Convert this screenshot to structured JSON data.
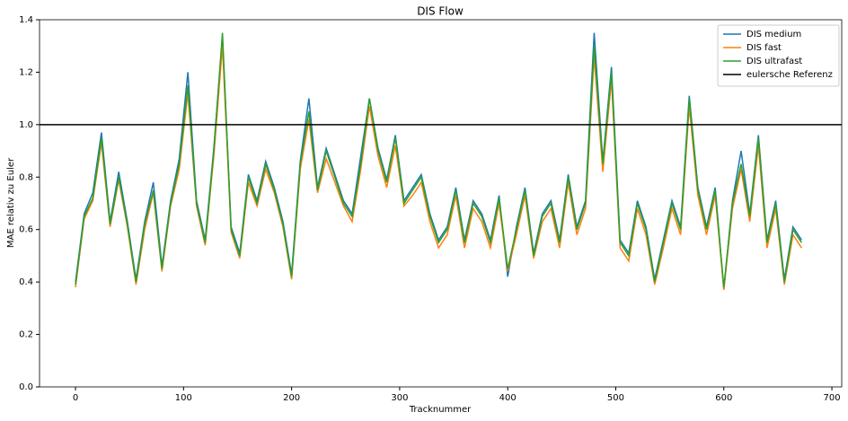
{
  "chart_data": {
    "type": "line",
    "title": "DIS Flow",
    "x_label": "Tracknummer",
    "y_label": "MAE relativ zu Euler",
    "x": [
      0,
      8,
      16,
      24,
      32,
      40,
      48,
      56,
      64,
      72,
      80,
      88,
      96,
      104,
      112,
      120,
      128,
      136,
      144,
      152,
      160,
      168,
      176,
      184,
      192,
      200,
      208,
      216,
      224,
      232,
      240,
      248,
      256,
      264,
      272,
      280,
      288,
      296,
      304,
      312,
      320,
      328,
      336,
      344,
      352,
      360,
      368,
      376,
      384,
      392,
      400,
      408,
      416,
      424,
      432,
      440,
      448,
      456,
      464,
      472,
      480,
      488,
      496,
      504,
      512,
      520,
      528,
      536,
      544,
      552,
      560,
      568,
      576,
      584,
      592,
      600,
      608,
      616,
      624,
      632,
      640,
      648,
      656,
      664,
      672
    ],
    "series": [
      {
        "name": "DIS medium",
        "color": "#1f77b4",
        "values": [
          0.4,
          0.66,
          0.74,
          0.97,
          0.63,
          0.82,
          0.63,
          0.41,
          0.63,
          0.78,
          0.46,
          0.71,
          0.87,
          1.2,
          0.71,
          0.56,
          0.91,
          1.33,
          0.61,
          0.51,
          0.81,
          0.71,
          0.86,
          0.76,
          0.63,
          0.43,
          0.86,
          1.1,
          0.76,
          0.91,
          0.81,
          0.71,
          0.66,
          0.88,
          1.1,
          0.91,
          0.79,
          0.96,
          0.71,
          0.76,
          0.81,
          0.66,
          0.56,
          0.61,
          0.76,
          0.56,
          0.71,
          0.66,
          0.56,
          0.73,
          0.42,
          0.61,
          0.76,
          0.51,
          0.66,
          0.71,
          0.56,
          0.81,
          0.61,
          0.71,
          1.35,
          0.86,
          1.22,
          0.56,
          0.51,
          0.71,
          0.61,
          0.41,
          0.56,
          0.71,
          0.61,
          1.11,
          0.76,
          0.61,
          0.76,
          0.37,
          0.71,
          0.9,
          0.66,
          0.96,
          0.56,
          0.71,
          0.41,
          0.61,
          0.56
        ]
      },
      {
        "name": "DIS fast",
        "color": "#ff7f0e",
        "values": [
          0.38,
          0.64,
          0.71,
          0.93,
          0.61,
          0.79,
          0.61,
          0.39,
          0.6,
          0.74,
          0.44,
          0.69,
          0.83,
          1.12,
          0.69,
          0.54,
          0.88,
          1.3,
          0.59,
          0.49,
          0.78,
          0.69,
          0.83,
          0.74,
          0.61,
          0.41,
          0.83,
          1.02,
          0.74,
          0.87,
          0.78,
          0.69,
          0.63,
          0.83,
          1.07,
          0.88,
          0.76,
          0.92,
          0.69,
          0.73,
          0.78,
          0.63,
          0.53,
          0.58,
          0.73,
          0.53,
          0.68,
          0.63,
          0.53,
          0.7,
          0.44,
          0.58,
          0.73,
          0.49,
          0.63,
          0.68,
          0.53,
          0.78,
          0.58,
          0.68,
          1.26,
          0.82,
          1.17,
          0.53,
          0.48,
          0.68,
          0.58,
          0.39,
          0.53,
          0.68,
          0.58,
          1.07,
          0.73,
          0.58,
          0.73,
          0.37,
          0.68,
          0.83,
          0.63,
          0.92,
          0.53,
          0.68,
          0.39,
          0.58,
          0.53
        ]
      },
      {
        "name": "DIS ultrafast",
        "color": "#2ca02c",
        "values": [
          0.39,
          0.65,
          0.72,
          0.95,
          0.62,
          0.8,
          0.62,
          0.4,
          0.62,
          0.75,
          0.45,
          0.7,
          0.85,
          1.15,
          0.7,
          0.55,
          0.9,
          1.35,
          0.6,
          0.5,
          0.8,
          0.7,
          0.85,
          0.75,
          0.62,
          0.42,
          0.85,
          1.05,
          0.75,
          0.9,
          0.8,
          0.7,
          0.65,
          0.85,
          1.1,
          0.9,
          0.78,
          0.95,
          0.7,
          0.75,
          0.8,
          0.65,
          0.55,
          0.6,
          0.75,
          0.55,
          0.7,
          0.65,
          0.55,
          0.72,
          0.45,
          0.6,
          0.75,
          0.5,
          0.65,
          0.7,
          0.55,
          0.8,
          0.6,
          0.7,
          1.3,
          0.85,
          1.2,
          0.55,
          0.5,
          0.7,
          0.6,
          0.4,
          0.55,
          0.7,
          0.6,
          1.1,
          0.75,
          0.6,
          0.75,
          0.38,
          0.7,
          0.85,
          0.65,
          0.95,
          0.55,
          0.7,
          0.4,
          0.6,
          0.55
        ]
      }
    ],
    "reference": {
      "name": "eulersche Referenz",
      "value": 1,
      "color": "#000000"
    },
    "xlim": [
      -33.3,
      709.1
    ],
    "ylim": [
      0,
      1.4
    ],
    "xticks": [
      0,
      100,
      200,
      300,
      400,
      500,
      600,
      700
    ],
    "yticks": [
      {
        "value": 0,
        "label": "0.0"
      },
      0.2,
      0.4,
      0.6,
      0.8,
      {
        "value": 1,
        "label": "1.0"
      },
      1.2,
      1.4
    ],
    "legend": "upper right",
    "grid": false
  }
}
